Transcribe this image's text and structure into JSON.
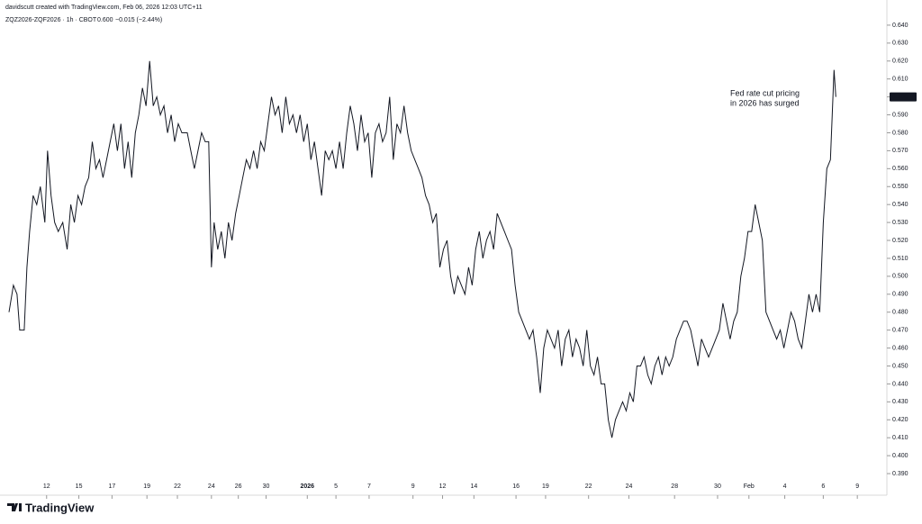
{
  "chart_data": {
    "type": "line",
    "header": "davidscutt created with TradingView.com, Feb 06, 2026 12:03 UTC+11",
    "title": "ZQZ2026-ZQF2026 · 1h · CBOT",
    "last": "0.600",
    "change": "−0.015 (−2.44%)",
    "annotation": [
      "Fed rate cut pricing",
      "in 2026 has surged"
    ],
    "brand": "TradingView",
    "color": "#131722",
    "grid": false,
    "x": [
      5,
      10,
      14,
      17,
      22,
      25,
      28,
      32,
      36,
      40,
      45,
      48,
      52,
      56,
      60,
      65,
      70,
      74,
      78,
      82,
      86,
      90,
      94,
      98,
      102,
      106,
      110,
      114,
      118,
      122,
      126,
      130,
      134,
      138,
      142,
      146,
      150,
      154,
      158,
      162,
      166,
      170,
      174,
      178,
      182,
      186,
      190,
      194,
      198,
      204,
      208,
      212,
      216,
      220,
      224,
      228,
      231,
      234,
      238,
      242,
      246,
      250,
      254,
      258,
      262,
      266,
      270,
      274,
      278,
      282,
      286,
      290,
      294,
      298,
      302,
      306,
      310,
      314,
      318,
      322,
      326,
      330,
      334,
      338,
      342,
      346,
      350,
      354,
      358,
      362,
      366,
      370,
      374,
      378,
      382,
      386,
      390,
      394,
      398,
      402,
      406,
      410,
      414,
      418,
      422,
      426,
      430,
      434,
      438,
      442,
      446,
      450,
      454,
      458,
      462,
      466,
      470,
      474,
      478,
      482,
      486,
      490,
      494,
      498,
      502,
      506,
      510,
      514,
      518,
      522,
      526,
      530,
      534,
      538,
      542,
      546,
      550,
      554,
      558,
      562,
      566,
      570,
      574,
      578,
      582,
      586,
      590,
      594,
      598,
      602,
      606,
      610,
      614,
      618,
      622,
      626,
      630,
      634,
      638,
      642,
      646,
      650,
      654,
      658,
      662,
      666,
      670,
      674,
      678,
      682,
      686,
      690,
      694,
      698,
      702,
      706,
      710,
      714,
      718,
      722,
      726,
      730,
      734,
      738,
      742,
      746,
      750,
      754,
      758,
      762,
      766,
      770,
      774,
      778,
      782,
      786,
      790,
      794,
      798,
      802,
      806,
      810,
      814,
      818,
      822,
      826,
      830,
      834,
      838,
      842,
      846,
      850,
      854,
      858,
      862,
      866,
      870,
      874,
      878,
      882,
      886,
      890,
      894,
      898,
      902,
      906,
      910,
      914,
      918,
      922,
      926,
      928
    ],
    "values": [
      0.48,
      0.495,
      0.49,
      0.47,
      0.47,
      0.505,
      0.525,
      0.545,
      0.54,
      0.55,
      0.53,
      0.57,
      0.545,
      0.53,
      0.525,
      0.53,
      0.515,
      0.54,
      0.53,
      0.545,
      0.54,
      0.55,
      0.555,
      0.575,
      0.56,
      0.565,
      0.555,
      0.565,
      0.575,
      0.585,
      0.57,
      0.585,
      0.56,
      0.575,
      0.555,
      0.58,
      0.59,
      0.605,
      0.595,
      0.62,
      0.595,
      0.6,
      0.59,
      0.595,
      0.58,
      0.59,
      0.575,
      0.585,
      0.58,
      0.58,
      0.57,
      0.56,
      0.57,
      0.58,
      0.575,
      0.575,
      0.505,
      0.53,
      0.515,
      0.525,
      0.51,
      0.53,
      0.52,
      0.535,
      0.545,
      0.555,
      0.565,
      0.56,
      0.57,
      0.56,
      0.575,
      0.57,
      0.585,
      0.6,
      0.59,
      0.595,
      0.58,
      0.6,
      0.585,
      0.59,
      0.58,
      0.59,
      0.575,
      0.585,
      0.565,
      0.575,
      0.56,
      0.545,
      0.57,
      0.565,
      0.57,
      0.56,
      0.575,
      0.56,
      0.58,
      0.595,
      0.585,
      0.57,
      0.59,
      0.575,
      0.58,
      0.555,
      0.58,
      0.585,
      0.575,
      0.58,
      0.6,
      0.565,
      0.585,
      0.58,
      0.595,
      0.58,
      0.57,
      0.565,
      0.56,
      0.555,
      0.545,
      0.54,
      0.53,
      0.535,
      0.505,
      0.515,
      0.52,
      0.5,
      0.49,
      0.5,
      0.495,
      0.49,
      0.505,
      0.495,
      0.515,
      0.525,
      0.51,
      0.52,
      0.525,
      0.515,
      0.535,
      0.53,
      0.525,
      0.52,
      0.515,
      0.495,
      0.48,
      0.475,
      0.47,
      0.465,
      0.47,
      0.455,
      0.435,
      0.46,
      0.47,
      0.465,
      0.46,
      0.47,
      0.45,
      0.465,
      0.47,
      0.455,
      0.465,
      0.46,
      0.45,
      0.47,
      0.45,
      0.445,
      0.455,
      0.44,
      0.44,
      0.42,
      0.41,
      0.42,
      0.425,
      0.43,
      0.425,
      0.435,
      0.43,
      0.45,
      0.45,
      0.455,
      0.445,
      0.44,
      0.45,
      0.455,
      0.445,
      0.455,
      0.45,
      0.455,
      0.465,
      0.47,
      0.475,
      0.475,
      0.47,
      0.46,
      0.45,
      0.465,
      0.46,
      0.455,
      0.46,
      0.465,
      0.47,
      0.485,
      0.475,
      0.465,
      0.475,
      0.48,
      0.5,
      0.51,
      0.525,
      0.525,
      0.54,
      0.53,
      0.52,
      0.48,
      0.475,
      0.47,
      0.465,
      0.47,
      0.46,
      0.47,
      0.48,
      0.475,
      0.465,
      0.46,
      0.475,
      0.49,
      0.48,
      0.49,
      0.48,
      0.53,
      0.56,
      0.565,
      0.615,
      0.6
    ],
    "last_price": {
      "value": 0.6,
      "label": "0.600"
    },
    "xlim": [
      0,
      985
    ],
    "ylim": [
      0.386,
      0.649
    ],
    "xticks": [
      {
        "value": 47,
        "label": "12"
      },
      {
        "value": 83,
        "label": "15"
      },
      {
        "value": 120,
        "label": "17"
      },
      {
        "value": 159,
        "label": "19"
      },
      {
        "value": 193,
        "label": "22"
      },
      {
        "value": 231,
        "label": "24"
      },
      {
        "value": 261,
        "label": "26"
      },
      {
        "value": 292,
        "label": "30"
      },
      {
        "value": 338,
        "label": "2026"
      },
      {
        "value": 370,
        "label": "5"
      },
      {
        "value": 407,
        "label": "7"
      },
      {
        "value": 456,
        "label": "9"
      },
      {
        "value": 489,
        "label": "12"
      },
      {
        "value": 524,
        "label": "14"
      },
      {
        "value": 571,
        "label": "16"
      },
      {
        "value": 604,
        "label": "19"
      },
      {
        "value": 652,
        "label": "22"
      },
      {
        "value": 697,
        "label": "24"
      },
      {
        "value": 748,
        "label": "28"
      },
      {
        "value": 796,
        "label": "30"
      },
      {
        "value": 831,
        "label": "Feb"
      },
      {
        "value": 871,
        "label": "4"
      },
      {
        "value": 914,
        "label": "6"
      },
      {
        "value": 952,
        "label": "9"
      }
    ],
    "yticks": [
      {
        "value": 0.64,
        "label": "0.640"
      },
      {
        "value": 0.63,
        "label": "0.630"
      },
      {
        "value": 0.62,
        "label": "0.620"
      },
      {
        "value": 0.61,
        "label": "0.610"
      },
      {
        "value": 0.6,
        "label": "0.600"
      },
      {
        "value": 0.59,
        "label": "0.590"
      },
      {
        "value": 0.58,
        "label": "0.580"
      },
      {
        "value": 0.57,
        "label": "0.570"
      },
      {
        "value": 0.56,
        "label": "0.560"
      },
      {
        "value": 0.55,
        "label": "0.550"
      },
      {
        "value": 0.54,
        "label": "0.540"
      },
      {
        "value": 0.53,
        "label": "0.530"
      },
      {
        "value": 0.52,
        "label": "0.520"
      },
      {
        "value": 0.51,
        "label": "0.510"
      },
      {
        "value": 0.5,
        "label": "0.500"
      },
      {
        "value": 0.49,
        "label": "0.490"
      },
      {
        "value": 0.48,
        "label": "0.480"
      },
      {
        "value": 0.47,
        "label": "0.470"
      },
      {
        "value": 0.46,
        "label": "0.460"
      },
      {
        "value": 0.45,
        "label": "0.450"
      },
      {
        "value": 0.44,
        "label": "0.440"
      },
      {
        "value": 0.43,
        "label": "0.430"
      },
      {
        "value": 0.42,
        "label": "0.420"
      },
      {
        "value": 0.41,
        "label": "0.410"
      },
      {
        "value": 0.4,
        "label": "0.400"
      },
      {
        "value": 0.39,
        "label": "0.390"
      }
    ]
  }
}
